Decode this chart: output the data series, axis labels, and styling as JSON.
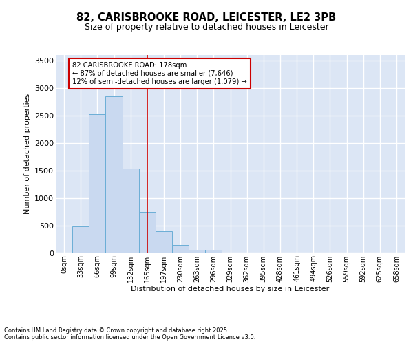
{
  "title_line1": "82, CARISBROOKE ROAD, LEICESTER, LE2 3PB",
  "title_line2": "Size of property relative to detached houses in Leicester",
  "xlabel": "Distribution of detached houses by size in Leicester",
  "ylabel": "Number of detached properties",
  "bar_labels": [
    "0sqm",
    "33sqm",
    "66sqm",
    "99sqm",
    "132sqm",
    "165sqm",
    "197sqm",
    "230sqm",
    "263sqm",
    "296sqm",
    "329sqm",
    "362sqm",
    "395sqm",
    "428sqm",
    "461sqm",
    "494sqm",
    "526sqm",
    "559sqm",
    "592sqm",
    "625sqm",
    "658sqm"
  ],
  "bar_values": [
    0,
    480,
    2520,
    2850,
    1540,
    750,
    400,
    150,
    60,
    60,
    0,
    0,
    0,
    0,
    0,
    0,
    0,
    0,
    0,
    0,
    0
  ],
  "bar_color": "#c9d9f0",
  "bar_edge_color": "#6baed6",
  "vline_x": 5.0,
  "vline_color": "#cc0000",
  "annotation_text": "82 CARISBROOKE ROAD: 178sqm\n← 87% of detached houses are smaller (7,646)\n12% of semi-detached houses are larger (1,079) →",
  "annotation_box_facecolor": "#ffffff",
  "annotation_box_edgecolor": "#cc0000",
  "ylim": [
    0,
    3600
  ],
  "yticks": [
    0,
    500,
    1000,
    1500,
    2000,
    2500,
    3000,
    3500
  ],
  "background_color": "#dce6f5",
  "grid_color": "#ffffff",
  "footer_line1": "Contains HM Land Registry data © Crown copyright and database right 2025.",
  "footer_line2": "Contains public sector information licensed under the Open Government Licence v3.0."
}
